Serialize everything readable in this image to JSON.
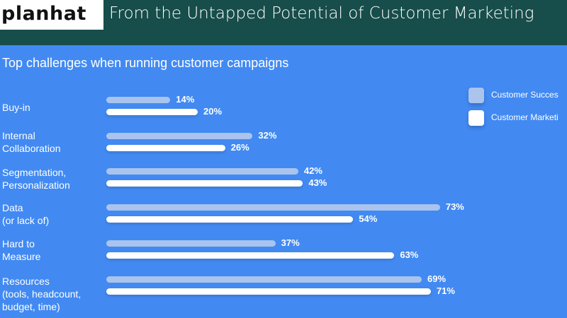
{
  "header": {
    "logo": "planhat",
    "source": "From the Untapped Potential of Customer Marketing"
  },
  "chart_data": {
    "type": "bar",
    "orientation": "horizontal",
    "title": "Top challenges when running customer campaigns",
    "categories": [
      "Buy-in",
      "Internal\nCollaboration",
      "Segmentation,\nPersonalization",
      "Data\n(or lack of)",
      "Hard to\nMeasure",
      "Resources\n(tools, headcount,\nbudget, time)"
    ],
    "series": [
      {
        "name": "Customer Succes",
        "color": "#aac4ee",
        "values": [
          14,
          32,
          42,
          73,
          37,
          69
        ],
        "labels": [
          "14%",
          "32%",
          "42%",
          "73%",
          "37%",
          "69%"
        ]
      },
      {
        "name": "Customer Marketi",
        "color": "#ffffff",
        "values": [
          20,
          26,
          43,
          54,
          63,
          71
        ],
        "labels": [
          "20%",
          "26%",
          "43%",
          "54%",
          "63%",
          "71%"
        ]
      }
    ],
    "xlim": [
      0,
      100
    ],
    "legend": "top-right",
    "grid": false
  }
}
